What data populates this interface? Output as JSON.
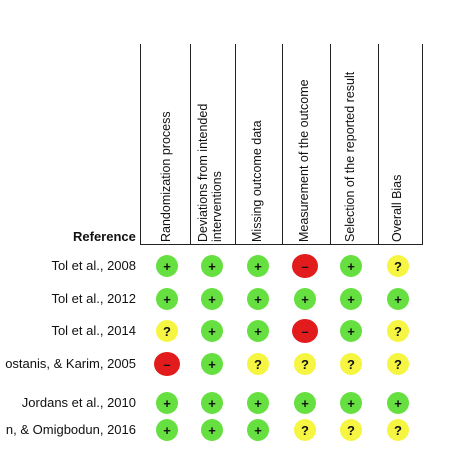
{
  "header": {
    "reference_label": "Reference"
  },
  "domains": [
    {
      "label": "Randomization process",
      "line2": ""
    },
    {
      "label": "Deviations from intended",
      "line2": "interventions"
    },
    {
      "label": "Missing outcome data",
      "line2": ""
    },
    {
      "label": "Measurement of the outcome",
      "line2": ""
    },
    {
      "label": "Selection of the reported result",
      "line2": ""
    },
    {
      "label": "Overall Bias",
      "line2": ""
    }
  ],
  "studies": [
    {
      "label": "Tol et al., 2008",
      "ratings": [
        "+",
        "+",
        "+",
        "–",
        "+",
        "?"
      ]
    },
    {
      "label": "Tol et al., 2012",
      "ratings": [
        "+",
        "+",
        "+",
        "+",
        "+",
        "+"
      ]
    },
    {
      "label": "Tol et al., 2014",
      "ratings": [
        "?",
        "+",
        "+",
        "–",
        "+",
        "?"
      ]
    },
    {
      "label": "ostanis, & Karim, 2005",
      "ratings": [
        "–",
        "+",
        "?",
        "?",
        "?",
        "?"
      ]
    },
    {
      "label": "Jordans et al., 2010",
      "ratings": [
        "+",
        "+",
        "+",
        "+",
        "+",
        "+"
      ]
    },
    {
      "label": "n, & Omigbodun, 2016",
      "ratings": [
        "+",
        "+",
        "+",
        "?",
        "?",
        "?"
      ]
    }
  ],
  "colors": {
    "low": "#66e040",
    "some_concerns": "#f5f542",
    "high": "#e21c1c",
    "line": "#222222"
  }
}
